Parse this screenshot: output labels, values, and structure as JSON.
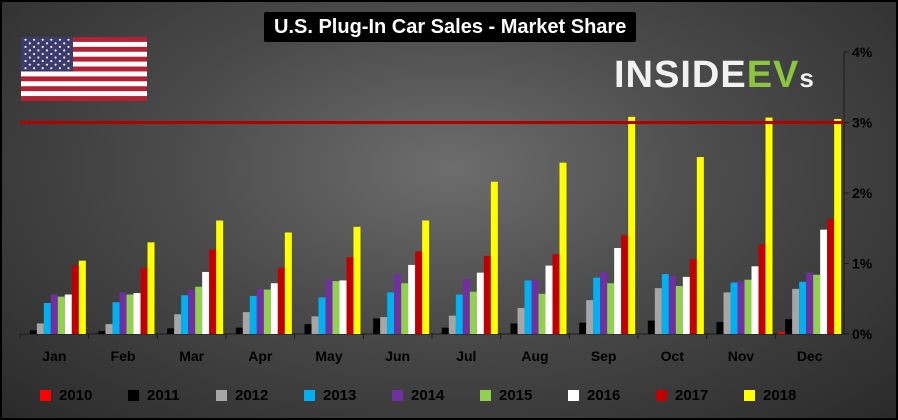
{
  "title": "U.S. Plug-In Car Sales - Market Share",
  "logo": {
    "main": "INSIDE",
    "ev": "EV",
    "s": "s"
  },
  "flag_icon": "us-flag-icon",
  "colors": {
    "reference_line": "#b00000",
    "series": [
      "#ff0000",
      "#000000",
      "#a6a6a6",
      "#00b0f0",
      "#7030a0",
      "#92d050",
      "#ffffff",
      "#c00000",
      "#ffff00"
    ]
  },
  "chart_data": {
    "type": "bar",
    "categories": [
      "Jan",
      "Feb",
      "Mar",
      "Apr",
      "May",
      "Jun",
      "Jul",
      "Aug",
      "Sep",
      "Oct",
      "Nov",
      "Dec"
    ],
    "y_unit": "%",
    "ylim": [
      0,
      4
    ],
    "yticks": [
      0,
      1,
      2,
      3,
      4
    ],
    "ytick_labels": [
      "0%",
      "1%",
      "2%",
      "3%",
      "4%"
    ],
    "y_axis_side": "right",
    "reference_line": 3.0,
    "legend_position": "bottom",
    "series": [
      {
        "name": "2010",
        "values": [
          null,
          null,
          null,
          null,
          null,
          null,
          null,
          null,
          null,
          null,
          null,
          0.03
        ]
      },
      {
        "name": "2011",
        "values": [
          0.05,
          0.04,
          0.08,
          0.09,
          0.14,
          0.22,
          0.09,
          0.15,
          0.16,
          0.19,
          0.17,
          0.21
        ]
      },
      {
        "name": "2012",
        "values": [
          0.15,
          0.14,
          0.28,
          0.31,
          0.25,
          0.24,
          0.26,
          0.37,
          0.48,
          0.65,
          0.59,
          0.64
        ]
      },
      {
        "name": "2013",
        "values": [
          0.44,
          0.45,
          0.55,
          0.54,
          0.52,
          0.59,
          0.56,
          0.76,
          0.8,
          0.85,
          0.73,
          0.74
        ]
      },
      {
        "name": "2014",
        "values": [
          0.56,
          0.59,
          0.63,
          0.64,
          0.77,
          0.85,
          0.78,
          0.77,
          0.88,
          0.82,
          0.75,
          0.87
        ]
      },
      {
        "name": "2015",
        "values": [
          0.53,
          0.56,
          0.67,
          0.63,
          0.75,
          0.72,
          0.6,
          0.57,
          0.72,
          0.68,
          0.77,
          0.84
        ]
      },
      {
        "name": "2016",
        "values": [
          0.56,
          0.58,
          0.88,
          0.72,
          0.76,
          0.98,
          0.87,
          0.97,
          1.22,
          0.81,
          0.96,
          1.48
        ]
      },
      {
        "name": "2017",
        "values": [
          0.97,
          0.94,
          1.2,
          0.94,
          1.09,
          1.17,
          1.11,
          1.13,
          1.4,
          1.06,
          1.27,
          1.63
        ]
      },
      {
        "name": "2018",
        "values": [
          1.04,
          1.3,
          1.61,
          1.44,
          1.52,
          1.61,
          2.16,
          2.43,
          3.08,
          2.51,
          3.07,
          3.05
        ]
      }
    ]
  }
}
